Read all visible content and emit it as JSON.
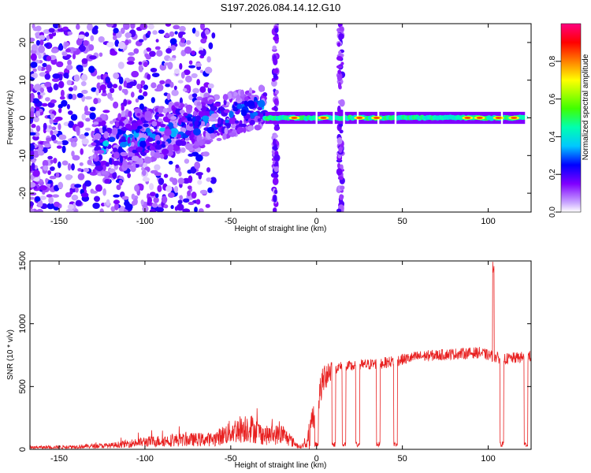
{
  "title": "S197.2026.084.14.12.G10",
  "chart_data": [
    {
      "type": "heatmap",
      "xlabel": "Height of straight line (km)",
      "ylabel": "Frequency (Hz)",
      "xlim": [
        -167,
        125
      ],
      "ylim": [
        -25,
        25
      ],
      "xticks": [
        -150,
        -100,
        -50,
        0,
        50,
        100
      ],
      "yticks": [
        -20,
        -10,
        0,
        10,
        20
      ],
      "colorbar": {
        "label": "Normalized spectral amplitude",
        "range": [
          0.0,
          1.0
        ],
        "ticks": [
          0.0,
          0.2,
          0.4,
          0.6,
          0.8
        ],
        "tick_labels": [
          "0.0",
          "0.2",
          "0.4",
          "0.6",
          "0.8"
        ],
        "colormap": [
          "#ffffff",
          "#8000ff",
          "#0000ff",
          "#00c8ff",
          "#00ff80",
          "#40ff00",
          "#ffff00",
          "#ff8000",
          "#ff0000",
          "#ff0080"
        ]
      },
      "features": [
        {
          "name": "noise",
          "x_range": [
            -167,
            -60
          ],
          "value_range": [
            0.05,
            0.25
          ]
        },
        {
          "name": "rising-arc",
          "x_start": -130,
          "x_end": -30,
          "freq_start": -8,
          "freq_end": 3,
          "peak_value": 0.35
        },
        {
          "name": "carrier-line",
          "x_range": [
            -30,
            122
          ],
          "freq": 0,
          "value": 0.45
        },
        {
          "name": "vertical-stripe",
          "x": -24,
          "value": 0.15
        },
        {
          "name": "vertical-stripe",
          "x": 14,
          "value": 0.15
        },
        {
          "name": "hot-spots",
          "x": [
            -13,
            4,
            25,
            35,
            88,
            95,
            106,
            115
          ],
          "value": 0.85
        }
      ]
    },
    {
      "type": "line",
      "xlabel": "Height of straight line (km)",
      "ylabel": "SNR (10 * v/v)",
      "xlim": [
        -167,
        125
      ],
      "ylim": [
        0,
        1500
      ],
      "xticks": [
        -150,
        -100,
        -50,
        0,
        50,
        100
      ],
      "yticks": [
        0,
        500,
        1000,
        1500
      ],
      "color": "#e82020",
      "profile": {
        "x": [
          -167,
          -150,
          -120,
          -100,
          -80,
          -60,
          -50,
          -40,
          -30,
          -20,
          -10,
          -5,
          0,
          5,
          10,
          20,
          40,
          60,
          80,
          95,
          105,
          110,
          125
        ],
        "value": [
          15,
          18,
          30,
          60,
          75,
          80,
          140,
          180,
          110,
          120,
          20,
          50,
          350,
          600,
          650,
          660,
          690,
          740,
          760,
          770,
          730,
          720,
          740
        ]
      },
      "dropouts": [
        0,
        10,
        16,
        24,
        36,
        46,
        108,
        122
      ],
      "spike": {
        "x": 103,
        "value": 1500
      }
    }
  ]
}
